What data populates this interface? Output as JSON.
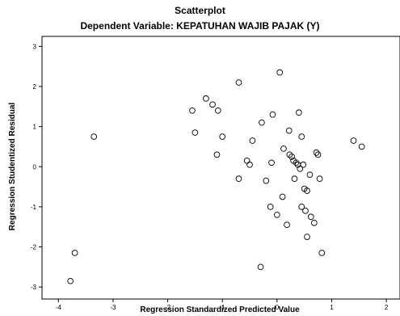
{
  "chart_data": {
    "type": "scatter",
    "title": "Scatterplot",
    "subtitle": "Dependent Variable: KEPATUHAN WAJIB PAJAK (Y)",
    "xlabel": "Regression Standardized Predicted Value",
    "ylabel": "Regression Studentized Residual",
    "xlim": [
      -4.3,
      2.25
    ],
    "ylim": [
      -3.3,
      3.25
    ],
    "xticks": [
      -4,
      -3,
      -2,
      -1,
      0,
      1,
      2
    ],
    "yticks": [
      3,
      2,
      1,
      0,
      -1,
      -2,
      -3
    ],
    "grid": false,
    "marker": "open-circle",
    "points": [
      {
        "x": -3.78,
        "y": -2.85
      },
      {
        "x": -3.7,
        "y": -2.15
      },
      {
        "x": -3.35,
        "y": 0.75
      },
      {
        "x": -1.55,
        "y": 1.4
      },
      {
        "x": -1.5,
        "y": 0.85
      },
      {
        "x": -1.3,
        "y": 1.7
      },
      {
        "x": -1.18,
        "y": 1.55
      },
      {
        "x": -1.08,
        "y": 1.4
      },
      {
        "x": -1.1,
        "y": 0.3
      },
      {
        "x": -1.0,
        "y": 0.75
      },
      {
        "x": -0.7,
        "y": 2.1
      },
      {
        "x": -0.7,
        "y": -0.3
      },
      {
        "x": -0.55,
        "y": 0.15
      },
      {
        "x": -0.5,
        "y": 0.05
      },
      {
        "x": -0.45,
        "y": 0.65
      },
      {
        "x": -0.28,
        "y": 1.1
      },
      {
        "x": -0.2,
        "y": -0.35
      },
      {
        "x": -0.1,
        "y": 0.1
      },
      {
        "x": -0.08,
        "y": 1.3
      },
      {
        "x": 0.05,
        "y": 2.35
      },
      {
        "x": -0.12,
        "y": -1.0
      },
      {
        "x": 0.0,
        "y": -1.2
      },
      {
        "x": 0.1,
        "y": -0.75
      },
      {
        "x": -0.3,
        "y": -2.5
      },
      {
        "x": 0.12,
        "y": 0.45
      },
      {
        "x": 0.18,
        "y": -1.45
      },
      {
        "x": 0.22,
        "y": 0.9
      },
      {
        "x": 0.23,
        "y": 0.3
      },
      {
        "x": 0.27,
        "y": 0.25
      },
      {
        "x": 0.3,
        "y": 0.15
      },
      {
        "x": 0.32,
        "y": -0.3
      },
      {
        "x": 0.35,
        "y": 0.1
      },
      {
        "x": 0.38,
        "y": 0.05
      },
      {
        "x": 0.4,
        "y": 1.35
      },
      {
        "x": 0.42,
        "y": -0.05
      },
      {
        "x": 0.45,
        "y": 0.75
      },
      {
        "x": 0.45,
        "y": -1.0
      },
      {
        "x": 0.48,
        "y": 0.05
      },
      {
        "x": 0.5,
        "y": -0.55
      },
      {
        "x": 0.52,
        "y": -1.1
      },
      {
        "x": 0.55,
        "y": -0.6
      },
      {
        "x": 0.55,
        "y": -1.75
      },
      {
        "x": 0.6,
        "y": -0.2
      },
      {
        "x": 0.62,
        "y": -1.25
      },
      {
        "x": 0.68,
        "y": -1.4
      },
      {
        "x": 0.72,
        "y": 0.35
      },
      {
        "x": 0.75,
        "y": 0.3
      },
      {
        "x": 0.78,
        "y": -0.3
      },
      {
        "x": 0.82,
        "y": -2.15
      },
      {
        "x": 1.4,
        "y": 0.65
      },
      {
        "x": 1.55,
        "y": 0.5
      }
    ]
  }
}
